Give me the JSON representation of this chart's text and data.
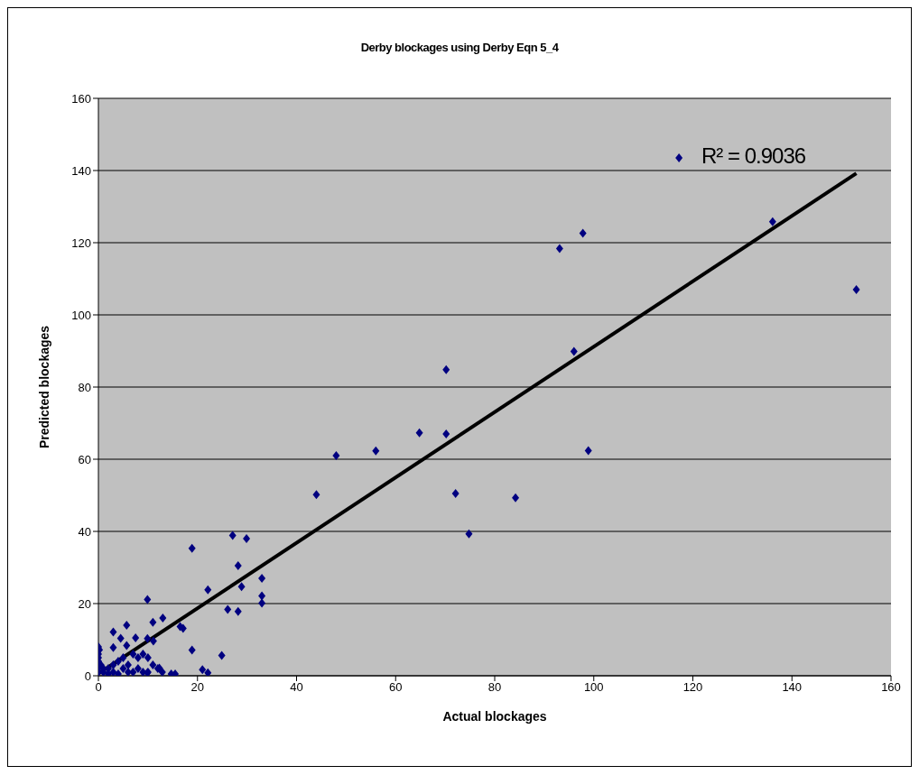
{
  "chart_data": {
    "type": "scatter",
    "title": "Derby blockages using Derby Eqn 5_4",
    "xlabel": "Actual blockages",
    "ylabel": "Predicted blockages",
    "xlim": [
      0,
      160
    ],
    "xticks": [
      0,
      20,
      40,
      60,
      80,
      100,
      120,
      140,
      160
    ],
    "ylim": [
      0,
      160
    ],
    "yticks": [
      0,
      20,
      40,
      60,
      80,
      100,
      120,
      140,
      160
    ],
    "grid": "y",
    "marker": "diamond",
    "legend": false,
    "annotations": [
      "R² = 0.9036"
    ],
    "series": [
      {
        "color": "#000080",
        "x": [
          117.2,
          97.8,
          93.1,
          136.1,
          153,
          96,
          98.9,
          70.2,
          64.8,
          70.2,
          56,
          48,
          44,
          72.1,
          84.2,
          74.8,
          27.1,
          29.9,
          18.9,
          28.2,
          33,
          22.1,
          28.9,
          33,
          33,
          26.1,
          28.2,
          9.9,
          11,
          13,
          3,
          5.7,
          4.5,
          7.5,
          3,
          9.9,
          11.1,
          5.7,
          16.5,
          17.1,
          18.9,
          24.9,
          21,
          22.1,
          0,
          0.2,
          0,
          0,
          0,
          0,
          0,
          0.5,
          1,
          1,
          2,
          2,
          3,
          3,
          4,
          4,
          5,
          5,
          6,
          6,
          7,
          7,
          8,
          8,
          9,
          9,
          10,
          10,
          11,
          12,
          12.3,
          12.9,
          14.7,
          15.5,
          9.9
        ],
        "values": [
          143.5,
          122.6,
          118.4,
          125.8,
          107,
          89.9,
          62.4,
          84.8,
          67.3,
          67,
          62.3,
          61,
          50.2,
          50.5,
          49.3,
          39.3,
          38.9,
          38,
          35.3,
          30.5,
          27,
          23.8,
          24.7,
          22.1,
          20.1,
          18.4,
          17.8,
          21.1,
          14.8,
          16,
          12.1,
          14,
          10.4,
          10.5,
          7.8,
          10.3,
          9.6,
          8.4,
          13.6,
          13.1,
          7.1,
          5.6,
          1.7,
          0.8,
          8,
          7.2,
          6,
          5,
          4,
          2,
          1,
          3,
          1,
          2,
          0.5,
          2,
          1,
          3,
          0.5,
          4,
          2,
          5,
          1,
          3,
          6,
          1,
          2,
          5,
          6,
          1,
          5,
          1,
          3,
          2,
          2.1,
          1,
          0.5,
          0.5,
          0.8
        ]
      },
      {
        "type": "line",
        "color": "#000000",
        "marker": "none",
        "x": [
          0,
          153
        ],
        "values": [
          0.6,
          139.2
        ]
      }
    ]
  }
}
